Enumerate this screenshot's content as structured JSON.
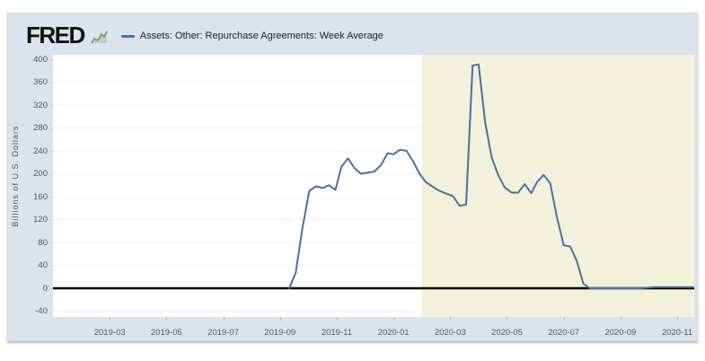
{
  "header": {
    "logo_text": "FRED",
    "legend_label": "Assets: Other: Repurchase Agreements: Week Average"
  },
  "colors": {
    "widget_background": "#dde3ed",
    "plot_background": "#ffffff",
    "recession_band": "#f4f1da",
    "series_line": "#4572a7",
    "zero_axis": "#000000",
    "gridline": "#efefef",
    "tick_text": "#565656"
  },
  "chart_data": {
    "type": "line",
    "title": "Assets: Other: Repurchase Agreements: Week Average",
    "xlabel": "",
    "ylabel": "Billions of U.S. Dollars",
    "ylim": [
      -40,
      400
    ],
    "y_ticks": [
      400,
      360,
      320,
      280,
      240,
      200,
      160,
      120,
      80,
      40,
      0,
      -40
    ],
    "x_ticks": [
      "2019-03",
      "2019-05",
      "2019-07",
      "2019-09",
      "2019-11",
      "2020-01",
      "2020-03",
      "2020-05",
      "2020-07",
      "2020-09",
      "2020-11"
    ],
    "x_domain_start": "2019-01-01",
    "x_domain_end": "2020-11-20",
    "grid": "horizontal",
    "legend_position": "top-left",
    "recession_band": {
      "start": "2020-02-01",
      "end": "2020-11-20"
    },
    "series": [
      {
        "name": "Assets: Other: Repurchase Agreements: Week Average",
        "color": "#4572a7",
        "dates": [
          "2019-09-11",
          "2019-09-18",
          "2019-09-25",
          "2019-10-02",
          "2019-10-09",
          "2019-10-16",
          "2019-10-23",
          "2019-10-30",
          "2019-11-06",
          "2019-11-13",
          "2019-11-20",
          "2019-11-27",
          "2019-12-04",
          "2019-12-11",
          "2019-12-18",
          "2019-12-25",
          "2020-01-01",
          "2020-01-08",
          "2020-01-15",
          "2020-01-22",
          "2020-01-29",
          "2020-02-05",
          "2020-02-12",
          "2020-02-19",
          "2020-02-26",
          "2020-03-04",
          "2020-03-11",
          "2020-03-18",
          "2020-03-25",
          "2020-04-01",
          "2020-04-08",
          "2020-04-15",
          "2020-04-22",
          "2020-04-29",
          "2020-05-06",
          "2020-05-13",
          "2020-05-20",
          "2020-05-27",
          "2020-06-03",
          "2020-06-10",
          "2020-06-17",
          "2020-06-24",
          "2020-07-01",
          "2020-07-08",
          "2020-07-15",
          "2020-07-22",
          "2020-07-29",
          "2020-08-05",
          "2020-08-12",
          "2020-08-19",
          "2020-08-26",
          "2020-09-02",
          "2020-09-09",
          "2020-09-16",
          "2020-09-23",
          "2020-09-30",
          "2020-10-07",
          "2020-10-14",
          "2020-10-21",
          "2020-10-28",
          "2020-11-04",
          "2020-11-11",
          "2020-11-18"
        ],
        "values": [
          0,
          28,
          105,
          170,
          178,
          175,
          180,
          172,
          212,
          227,
          210,
          200,
          202,
          204,
          215,
          236,
          234,
          242,
          240,
          222,
          200,
          186,
          178,
          171,
          166,
          161,
          144,
          146,
          389,
          391,
          290,
          229,
          198,
          176,
          167,
          167,
          182,
          166,
          186,
          198,
          183,
          125,
          75,
          73,
          48,
          8,
          0,
          0,
          0,
          0,
          0,
          0,
          0,
          0,
          0,
          1,
          2,
          2,
          2,
          2,
          2,
          2,
          2
        ]
      }
    ]
  }
}
